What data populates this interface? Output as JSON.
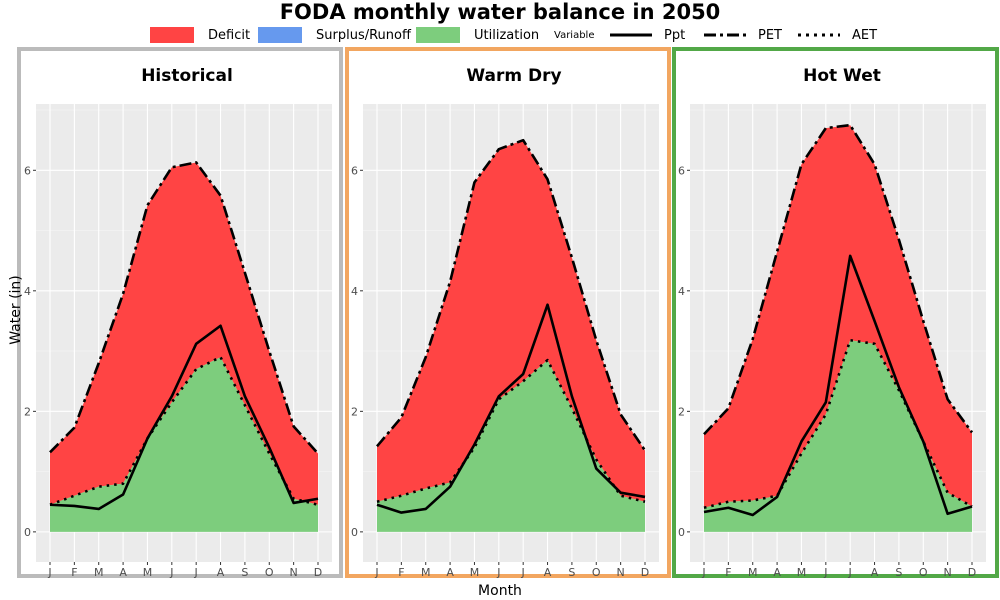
{
  "title": "FODA monthly water balance in 2050",
  "legend": {
    "fill_items": [
      {
        "label": "Deficit",
        "color": "#ff4444"
      },
      {
        "label": "Surplus/Runoff",
        "color": "#6699ee"
      },
      {
        "label": "Utilization",
        "color": "#7dcd7d"
      }
    ],
    "variable_title": "Variable",
    "line_items": [
      {
        "label": "Ppt",
        "dash": "solid"
      },
      {
        "label": "PET",
        "dash": "dashdot"
      },
      {
        "label": "AET",
        "dash": "dotted"
      }
    ]
  },
  "axes": {
    "ylabel": "Water (in)",
    "xlabel": "Month"
  },
  "chart_data": [
    {
      "type": "area",
      "title": "Historical",
      "frame_color": "#bbbbbb",
      "categories": [
        "J",
        "F",
        "M",
        "A",
        "M",
        "J",
        "J",
        "A",
        "S",
        "O",
        "N",
        "D"
      ],
      "ylim": [
        -0.5,
        7.1
      ],
      "yticks": [
        0,
        2,
        4,
        6
      ],
      "grid": true,
      "series": [
        {
          "name": "Ppt",
          "values": [
            0.45,
            0.43,
            0.38,
            0.62,
            1.55,
            2.25,
            3.12,
            3.42,
            2.25,
            1.4,
            0.48,
            0.55
          ]
        },
        {
          "name": "PET",
          "values": [
            1.32,
            1.73,
            2.8,
            3.95,
            5.42,
            6.05,
            6.13,
            5.58,
            4.3,
            3.0,
            1.75,
            1.3
          ]
        },
        {
          "name": "AET",
          "values": [
            0.45,
            0.6,
            0.75,
            0.8,
            1.55,
            2.15,
            2.7,
            2.9,
            2.1,
            1.3,
            0.55,
            0.45
          ]
        }
      ]
    },
    {
      "type": "area",
      "title": "Warm Dry",
      "frame_color": "#f2a660",
      "categories": [
        "J",
        "F",
        "M",
        "A",
        "M",
        "J",
        "J",
        "A",
        "S",
        "O",
        "N",
        "D"
      ],
      "ylim": [
        -0.5,
        7.1
      ],
      "yticks": [
        0,
        2,
        4,
        6
      ],
      "grid": true,
      "series": [
        {
          "name": "Ppt",
          "values": [
            0.45,
            0.32,
            0.38,
            0.75,
            1.45,
            2.25,
            2.62,
            3.77,
            2.25,
            1.05,
            0.65,
            0.58
          ]
        },
        {
          "name": "PET",
          "values": [
            1.42,
            1.9,
            2.9,
            4.15,
            5.8,
            6.35,
            6.5,
            5.85,
            4.55,
            3.18,
            1.95,
            1.35
          ]
        },
        {
          "name": "AET",
          "values": [
            0.5,
            0.6,
            0.72,
            0.82,
            1.4,
            2.2,
            2.5,
            2.85,
            2.05,
            1.2,
            0.6,
            0.5
          ]
        }
      ]
    },
    {
      "type": "area",
      "title": "Hot Wet",
      "frame_color": "#52a847",
      "categories": [
        "J",
        "F",
        "M",
        "A",
        "M",
        "J",
        "J",
        "A",
        "S",
        "O",
        "N",
        "D"
      ],
      "ylim": [
        -0.5,
        7.1
      ],
      "yticks": [
        0,
        2,
        4,
        6
      ],
      "grid": true,
      "series": [
        {
          "name": "Ppt",
          "values": [
            0.33,
            0.4,
            0.28,
            0.58,
            1.5,
            2.15,
            4.58,
            3.5,
            2.4,
            1.5,
            0.3,
            0.42
          ]
        },
        {
          "name": "PET",
          "values": [
            1.62,
            2.05,
            3.2,
            4.65,
            6.1,
            6.7,
            6.75,
            6.1,
            4.85,
            3.5,
            2.2,
            1.65
          ]
        },
        {
          "name": "AET",
          "values": [
            0.4,
            0.5,
            0.52,
            0.6,
            1.3,
            1.95,
            3.18,
            3.12,
            2.35,
            1.5,
            0.65,
            0.42
          ]
        }
      ]
    }
  ]
}
